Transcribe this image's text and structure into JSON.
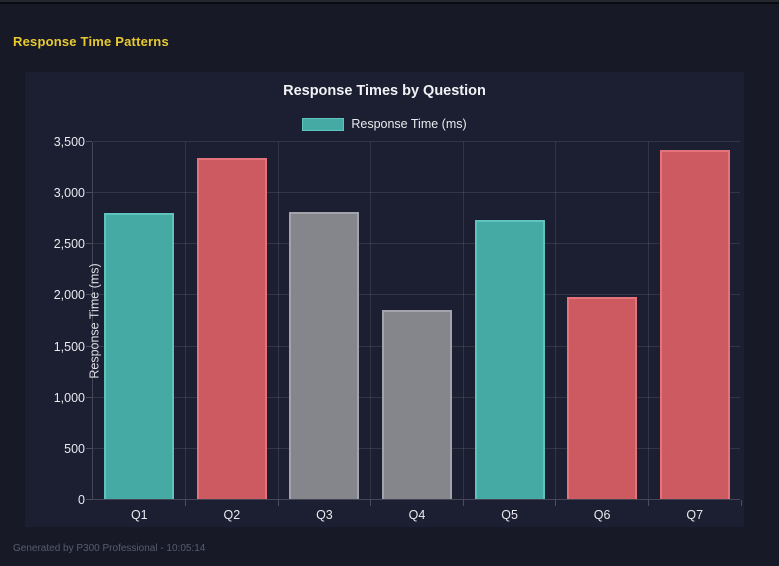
{
  "header": {
    "title": "Response Time Patterns"
  },
  "footer": {
    "text": "Generated by P300 Professional - 10:05:14"
  },
  "colors": {
    "page_background": "#171a26",
    "panel_background": "#1c1e31",
    "header_accent": "#e8c930",
    "teal": "#45a9a4",
    "red": "#cd5a60",
    "gray": "#85858c"
  },
  "chart_data": {
    "type": "bar",
    "title": "Response Times by Question",
    "legend": [
      {
        "label": "Response Time (ms)",
        "color": "#45a9a4"
      }
    ],
    "legend_position": "top",
    "categories": [
      "Q1",
      "Q2",
      "Q3",
      "Q4",
      "Q5",
      "Q6",
      "Q7"
    ],
    "values": [
      2800,
      3330,
      2810,
      1850,
      2730,
      1970,
      3410
    ],
    "bar_colors": [
      "#45a9a4",
      "#cd5a60",
      "#85858c",
      "#85858c",
      "#45a9a4",
      "#cd5a60",
      "#cd5a60"
    ],
    "bar_border_colors": [
      "#5fc4be",
      "#e4737a",
      "#a3a3ab",
      "#a3a3ab",
      "#5fc4be",
      "#e4737a",
      "#e4737a"
    ],
    "xlabel": "",
    "ylabel": "Response Time (ms)",
    "ylim": [
      0,
      3500
    ],
    "ytick_step": 500,
    "ytick_labels": [
      "0",
      "500",
      "1,000",
      "1,500",
      "2,000",
      "2,500",
      "3,000",
      "3,500"
    ],
    "grid": true
  }
}
